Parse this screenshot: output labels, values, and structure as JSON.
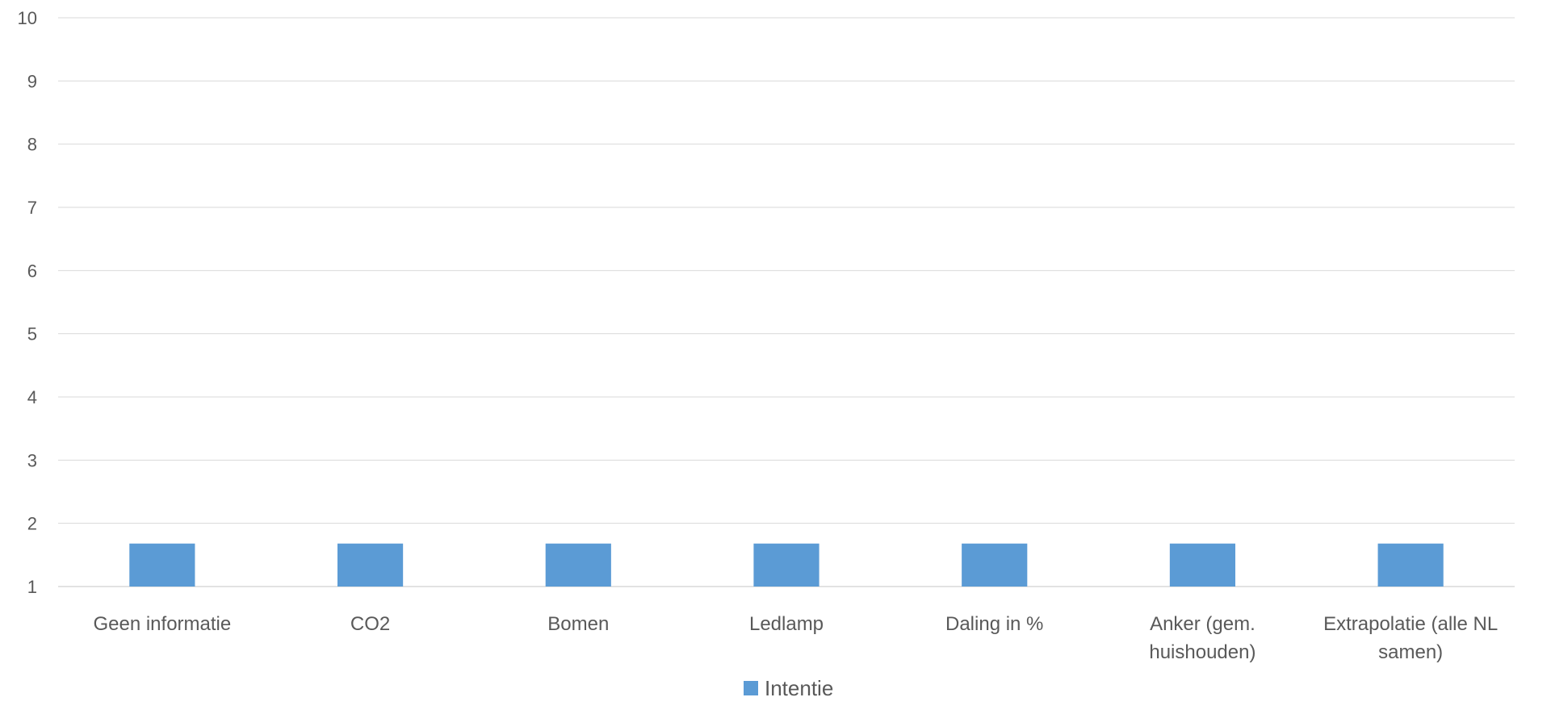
{
  "chart_data": {
    "type": "bar",
    "title": "",
    "xlabel": "",
    "ylabel": "",
    "categories": [
      [
        "Geen informatie"
      ],
      [
        "CO2"
      ],
      [
        "Bomen"
      ],
      [
        "Ledlamp"
      ],
      [
        "Daling in %"
      ],
      [
        "Anker (gem.",
        "huishouden)"
      ],
      [
        "Extrapolatie (alle NL",
        "samen)"
      ]
    ],
    "series": [
      {
        "name": "Intentie",
        "color": "#5b9bd5",
        "values": [
          1.68,
          1.68,
          1.68,
          1.68,
          1.68,
          1.68,
          1.68
        ]
      }
    ],
    "ylim": [
      1,
      10
    ],
    "yticks": [
      1,
      2,
      3,
      4,
      5,
      6,
      7,
      8,
      9,
      10
    ],
    "grid": true,
    "legend": "bottom-center"
  }
}
